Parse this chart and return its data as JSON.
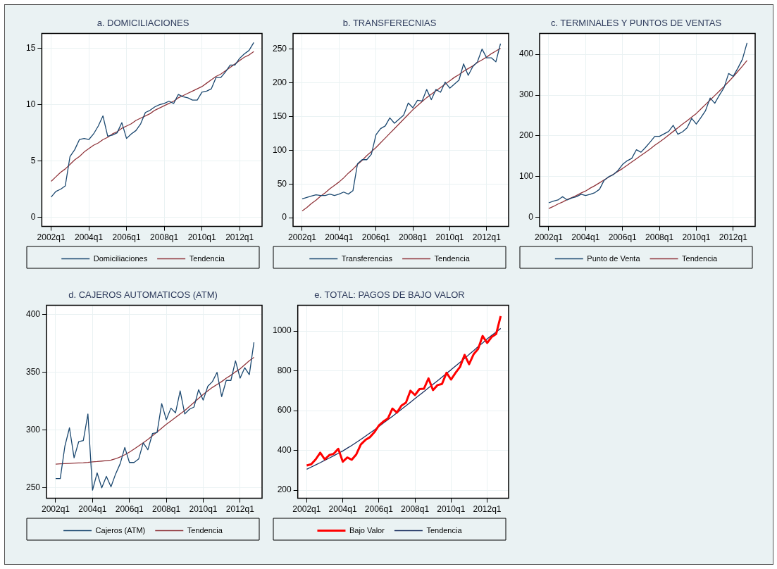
{
  "chart_data": [
    {
      "type": "line",
      "title": "a. DOMICILIACIONES",
      "categories": [
        "2002q1",
        null,
        null,
        null,
        null,
        null,
        null,
        null,
        "2004q1",
        null,
        null,
        null,
        null,
        null,
        null,
        null,
        "2006q1",
        null,
        null,
        null,
        null,
        null,
        null,
        null,
        "2008q1",
        null,
        null,
        null,
        null,
        null,
        null,
        null,
        "2010q1",
        null,
        null,
        null,
        null,
        null,
        null,
        null,
        "2012q1",
        null,
        null,
        null
      ],
      "series": [
        {
          "name": "Domiciliaciones",
          "color": "#1a476f",
          "values": [
            1.8,
            2.3,
            2.5,
            2.8,
            5.4,
            6.0,
            6.9,
            7.0,
            6.9,
            7.4,
            8.1,
            9.0,
            7.2,
            7.3,
            7.5,
            8.4,
            7.0,
            7.4,
            7.7,
            8.3,
            9.3,
            9.5,
            9.8,
            10.0,
            10.1,
            10.3,
            10.1,
            10.9,
            10.7,
            10.6,
            10.4,
            10.4,
            11.1,
            11.2,
            11.4,
            12.4,
            12.4,
            12.9,
            13.5,
            13.5,
            14.1,
            14.5,
            14.8,
            15.5
          ]
        },
        {
          "name": "Tendencia",
          "color": "#90353b",
          "values": [
            3.2,
            3.6,
            4.0,
            4.3,
            4.7,
            5.1,
            5.4,
            5.8,
            6.1,
            6.4,
            6.6,
            6.9,
            7.1,
            7.4,
            7.6,
            7.9,
            8.1,
            8.3,
            8.6,
            8.8,
            9.0,
            9.2,
            9.5,
            9.7,
            9.9,
            10.1,
            10.3,
            10.6,
            10.8,
            11.0,
            11.2,
            11.4,
            11.6,
            11.9,
            12.2,
            12.5,
            12.7,
            13.0,
            13.3,
            13.6,
            13.9,
            14.2,
            14.4,
            14.7
          ]
        }
      ],
      "ylim": [
        -0.8,
        16.3
      ],
      "yticks": [
        0,
        5,
        10,
        15
      ],
      "grid": true,
      "legend": "bottom",
      "marker": "none",
      "line_style": "solid"
    },
    {
      "type": "line",
      "title": "b. TRANSFERECNIAS",
      "categories": [
        "2002q1",
        null,
        null,
        null,
        null,
        null,
        null,
        null,
        "2004q1",
        null,
        null,
        null,
        null,
        null,
        null,
        null,
        "2006q1",
        null,
        null,
        null,
        null,
        null,
        null,
        null,
        "2008q1",
        null,
        null,
        null,
        null,
        null,
        null,
        null,
        "2010q1",
        null,
        null,
        null,
        null,
        null,
        null,
        null,
        "2012q1",
        null,
        null,
        null
      ],
      "series": [
        {
          "name": "Transferencias",
          "color": "#1a476f",
          "values": [
            28,
            30,
            32,
            34,
            33,
            33,
            35,
            33,
            35,
            38,
            35,
            40,
            80,
            86,
            86,
            94,
            123,
            132,
            136,
            148,
            140,
            146,
            152,
            170,
            163,
            174,
            173,
            190,
            175,
            190,
            186,
            201,
            192,
            198,
            204,
            228,
            211,
            224,
            231,
            250,
            237,
            237,
            231,
            258
          ]
        },
        {
          "name": "Tendencia",
          "color": "#90353b",
          "values": [
            10,
            15,
            21,
            26,
            32,
            37,
            43,
            48,
            53,
            59,
            66,
            72,
            79,
            85,
            92,
            98,
            104,
            111,
            118,
            125,
            132,
            139,
            146,
            153,
            160,
            166,
            172,
            178,
            183,
            188,
            193,
            198,
            203,
            208,
            212,
            217,
            221,
            225,
            230,
            234,
            238,
            243,
            247,
            251
          ]
        }
      ],
      "ylim": [
        -13,
        273
      ],
      "yticks": [
        0,
        50,
        100,
        150,
        200,
        250
      ],
      "grid": true,
      "legend": "bottom",
      "marker": "none",
      "line_style": "solid"
    },
    {
      "type": "line",
      "title": "c. TERMINALES Y PUNTOS DE VENTAS",
      "categories": [
        "2002q1",
        null,
        null,
        null,
        null,
        null,
        null,
        null,
        "2004q1",
        null,
        null,
        null,
        null,
        null,
        null,
        null,
        "2006q1",
        null,
        null,
        null,
        null,
        null,
        null,
        null,
        "2008q1",
        null,
        null,
        null,
        null,
        null,
        null,
        null,
        "2010q1",
        null,
        null,
        null,
        null,
        null,
        null,
        null,
        "2012q1",
        null,
        null,
        null
      ],
      "series": [
        {
          "name": "Punto de Venta",
          "color": "#1a476f",
          "values": [
            36,
            40,
            43,
            51,
            43,
            48,
            51,
            57,
            54,
            57,
            61,
            69,
            91,
            100,
            105,
            115,
            130,
            139,
            145,
            166,
            160,
            172,
            185,
            199,
            199,
            205,
            211,
            226,
            204,
            210,
            220,
            243,
            229,
            245,
            262,
            293,
            280,
            300,
            318,
            353,
            346,
            366,
            388,
            428
          ]
        },
        {
          "name": "Tendencia",
          "color": "#90353b",
          "values": [
            22,
            27,
            33,
            38,
            44,
            49,
            54,
            60,
            65,
            72,
            78,
            85,
            92,
            99,
            106,
            113,
            120,
            128,
            136,
            144,
            152,
            160,
            168,
            177,
            185,
            193,
            202,
            211,
            220,
            229,
            237,
            246,
            255,
            266,
            277,
            288,
            299,
            310,
            321,
            333,
            345,
            358,
            371,
            385
          ]
        }
      ],
      "ylim": [
        -22,
        451
      ],
      "yticks": [
        0,
        100,
        200,
        300,
        400
      ],
      "grid": true,
      "legend": "bottom",
      "marker": "none",
      "line_style": "solid"
    },
    {
      "type": "line",
      "title": "d. CAJEROS AUTOMATICOS (ATM)",
      "categories": [
        "2002q1",
        null,
        null,
        null,
        null,
        null,
        null,
        null,
        "2004q1",
        null,
        null,
        null,
        null,
        null,
        null,
        null,
        "2006q1",
        null,
        null,
        null,
        null,
        null,
        null,
        null,
        "2008q1",
        null,
        null,
        null,
        null,
        null,
        null,
        null,
        "2010q1",
        null,
        null,
        null,
        null,
        null,
        null,
        null,
        "2012q1",
        null,
        null,
        null
      ],
      "series": [
        {
          "name": "Cajeros (ATM)",
          "color": "#1a476f",
          "values": [
            258,
            258,
            286,
            302,
            276,
            290,
            291,
            314,
            248,
            263,
            250,
            260,
            251,
            262,
            271,
            285,
            272,
            272,
            275,
            289,
            283,
            297,
            298,
            323,
            309,
            319,
            315,
            334,
            314,
            318,
            320,
            335,
            326,
            338,
            342,
            350,
            329,
            343,
            343,
            360,
            345,
            354,
            348,
            376
          ]
        },
        {
          "name": "Tendencia",
          "color": "#90353b",
          "values": [
            270.5,
            270.8,
            271,
            271.2,
            271.4,
            271.6,
            271.8,
            272.1,
            272.5,
            272.8,
            273.2,
            273.6,
            274,
            275.2,
            276.8,
            278.7,
            281,
            283.6,
            286.3,
            289.1,
            292,
            295.2,
            298.4,
            301.7,
            305,
            308,
            311,
            314,
            317,
            320.5,
            324,
            327.5,
            331,
            334,
            337,
            339.5,
            342,
            345,
            347.5,
            350.5,
            353,
            356.5,
            360,
            363
          ]
        }
      ],
      "ylim": [
        241,
        408
      ],
      "yticks": [
        250,
        300,
        350,
        400
      ],
      "grid": true,
      "legend": "bottom",
      "marker": "none",
      "line_style": "solid"
    },
    {
      "type": "line",
      "title": "e. TOTAL: PAGOS DE BAJO VALOR",
      "categories": [
        "2002q1",
        null,
        null,
        null,
        null,
        null,
        null,
        null,
        "2004q1",
        null,
        null,
        null,
        null,
        null,
        null,
        null,
        "2006q1",
        null,
        null,
        null,
        null,
        null,
        null,
        null,
        "2008q1",
        null,
        null,
        null,
        null,
        null,
        null,
        null,
        "2010q1",
        null,
        null,
        null,
        null,
        null,
        null,
        null,
        "2012q1",
        null,
        null,
        null
      ],
      "series": [
        {
          "name": "Bajo Valor",
          "color": "#ff0000",
          "values": [
            324,
            330,
            355,
            388,
            355,
            376,
            383,
            408,
            343,
            364,
            353,
            380,
            430,
            452,
            466,
            491,
            525,
            545,
            560,
            610,
            590,
            625,
            640,
            700,
            678,
            708,
            710,
            762,
            703,
            728,
            734,
            790,
            756,
            790,
            820,
            880,
            833,
            883,
            910,
            975,
            940,
            970,
            985,
            1075
          ]
        },
        {
          "name": "Tendencia",
          "color": "#1a2f5f",
          "values": [
            305,
            316,
            327,
            338,
            350,
            361,
            373,
            385,
            397,
            411,
            425,
            440,
            455,
            471,
            487,
            503,
            520,
            537,
            554,
            571,
            589,
            606,
            624,
            642,
            660,
            678,
            696,
            714,
            732,
            750,
            768,
            787,
            805,
            824,
            843,
            862,
            882,
            901,
            921,
            940,
            960,
            978,
            995,
            1013
          ]
        }
      ],
      "ylim": [
        159,
        1129
      ],
      "yticks": [
        200,
        400,
        600,
        800,
        1000
      ],
      "grid": true,
      "legend": "bottom",
      "marker": "none",
      "line_style": "solid"
    }
  ]
}
